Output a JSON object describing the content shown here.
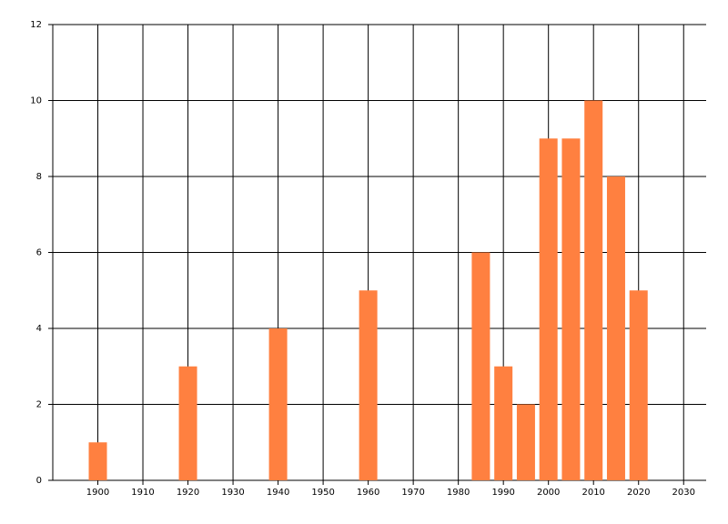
{
  "chart_data": {
    "type": "bar",
    "x": [
      1900,
      1920,
      1940,
      1960,
      1985,
      1990,
      1995,
      2000,
      2005,
      2010,
      2015,
      2020
    ],
    "values": [
      1,
      3,
      4,
      5,
      6,
      3,
      2,
      9,
      9,
      10,
      8,
      5
    ],
    "color": "#ff8040",
    "xlim": [
      1890,
      2035
    ],
    "xticks": [
      1900,
      1910,
      1920,
      1930,
      1940,
      1950,
      1960,
      1970,
      1980,
      1990,
      2000,
      2010,
      2020,
      2030
    ],
    "ylim": [
      0,
      12
    ],
    "yticks": [
      0,
      2,
      4,
      6,
      8,
      10,
      12
    ],
    "grid": true
  }
}
